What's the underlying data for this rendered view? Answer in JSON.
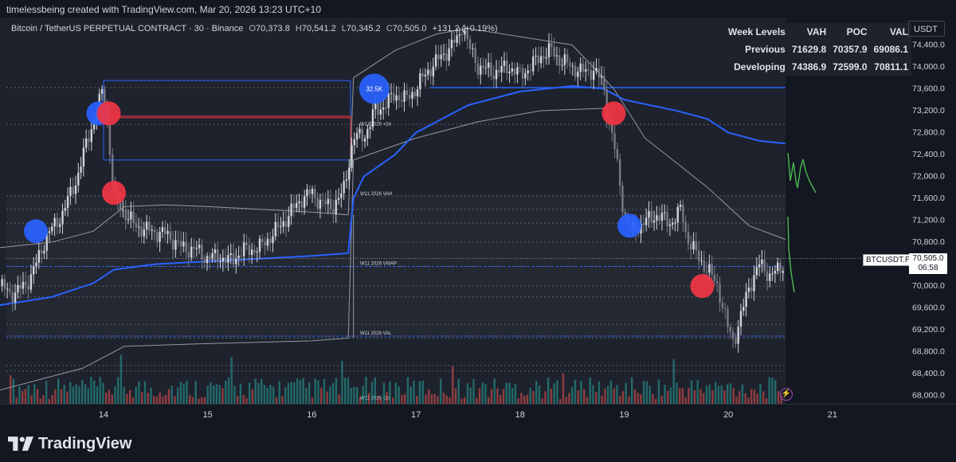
{
  "header": {
    "created_by": "timelessbeing created with TradingView.com, Mar 20, 2026 13:23 UTC+10"
  },
  "symbol_info": {
    "name": "Bitcoin / TetherUS PERPETUAL CONTRACT · 30 · Binance",
    "open_label": "O",
    "open": "70,373.8",
    "high_label": "H",
    "high": "70,541.2",
    "low_label": "L",
    "low": "70,345.2",
    "close_label": "C",
    "close": "70,505.0",
    "change": "+131.2 (+0.19%)"
  },
  "currency_button": "USDT",
  "week_levels_table": {
    "headers": [
      "Week Levels",
      "VAH",
      "POC",
      "VAL"
    ],
    "rows": [
      [
        "Previous",
        "71629.8",
        "70357.9",
        "69086.1"
      ],
      [
        "Developing",
        "74386.9",
        "72599.0",
        "70811.1"
      ]
    ]
  },
  "price_label": {
    "symbol": "BTCUSDT.P",
    "price": "70,505.0",
    "countdown": "06:58"
  },
  "branding": {
    "logo_text": "TradingView"
  },
  "colors": {
    "background": "#131722",
    "pane": "#1e222d",
    "blue_line": "#2962ff",
    "red_marker": "#f23645",
    "blue_marker": "#2962ff",
    "green_drawing": "#4caf50",
    "candle": "#d1d4dc",
    "volume_up": "#26a69a",
    "volume_down": "#ef5350"
  },
  "chart_data": {
    "type": "candlestick",
    "y_axis": {
      "ticks": [
        "74,400.0",
        "74,000.0",
        "73,600.0",
        "73,200.0",
        "72,800.0",
        "72,400.0",
        "72,000.0",
        "71,600.0",
        "71,200.0",
        "70,800.0",
        "70,000.0",
        "69,600.0",
        "69,200.0",
        "68,800.0",
        "68,400.0",
        "68,000.0"
      ],
      "tick_values": [
        74400,
        74000,
        73600,
        73200,
        72800,
        72400,
        72000,
        71600,
        71200,
        70800,
        70000,
        69600,
        69200,
        68800,
        68400,
        68000
      ],
      "range": [
        67850,
        74900
      ]
    },
    "x_axis": {
      "ticks": [
        "14",
        "15",
        "16",
        "17",
        "18",
        "19",
        "20",
        "21"
      ],
      "tick_days": [
        14,
        15,
        16,
        17,
        18,
        19,
        20,
        21
      ],
      "range": [
        13,
        21.4
      ]
    },
    "price_path": [
      [
        13.0,
        70000
      ],
      [
        13.15,
        69850
      ],
      [
        13.3,
        70150
      ],
      [
        13.45,
        70900
      ],
      [
        13.6,
        71300
      ],
      [
        13.75,
        72000
      ],
      [
        13.85,
        72700
      ],
      [
        13.95,
        73300
      ],
      [
        14.0,
        73600
      ],
      [
        14.05,
        72700
      ],
      [
        14.1,
        71600
      ],
      [
        14.2,
        71350
      ],
      [
        14.3,
        71100
      ],
      [
        14.45,
        71000
      ],
      [
        14.6,
        70950
      ],
      [
        14.75,
        70700
      ],
      [
        14.9,
        70650
      ],
      [
        15.0,
        70500
      ],
      [
        15.1,
        70550
      ],
      [
        15.2,
        70450
      ],
      [
        15.35,
        70650
      ],
      [
        15.5,
        70700
      ],
      [
        15.6,
        70900
      ],
      [
        15.7,
        71100
      ],
      [
        15.8,
        71350
      ],
      [
        15.9,
        71600
      ],
      [
        16.0,
        71700
      ],
      [
        16.1,
        71500
      ],
      [
        16.2,
        71450
      ],
      [
        16.3,
        71700
      ],
      [
        16.35,
        72200
      ],
      [
        16.4,
        72700
      ],
      [
        16.5,
        72750
      ],
      [
        16.55,
        72900
      ],
      [
        16.6,
        73200
      ],
      [
        16.7,
        73300
      ],
      [
        16.8,
        73500
      ],
      [
        16.9,
        73400
      ],
      [
        17.0,
        73600
      ],
      [
        17.1,
        73900
      ],
      [
        17.2,
        74100
      ],
      [
        17.3,
        74300
      ],
      [
        17.4,
        74500
      ],
      [
        17.45,
        74800
      ],
      [
        17.5,
        74400
      ],
      [
        17.6,
        74000
      ],
      [
        17.75,
        73900
      ],
      [
        17.9,
        74000
      ],
      [
        18.0,
        73850
      ],
      [
        18.1,
        74000
      ],
      [
        18.2,
        74200
      ],
      [
        18.3,
        74300
      ],
      [
        18.4,
        74100
      ],
      [
        18.5,
        74000
      ],
      [
        18.6,
        73900
      ],
      [
        18.7,
        73950
      ],
      [
        18.8,
        73700
      ],
      [
        18.85,
        73000
      ],
      [
        18.9,
        72600
      ],
      [
        18.95,
        72000
      ],
      [
        19.0,
        71300
      ],
      [
        19.05,
        71000
      ],
      [
        19.15,
        71100
      ],
      [
        19.3,
        71300
      ],
      [
        19.45,
        71150
      ],
      [
        19.55,
        71400
      ],
      [
        19.6,
        70900
      ],
      [
        19.7,
        70550
      ],
      [
        19.8,
        70300
      ],
      [
        19.9,
        70000
      ],
      [
        19.95,
        69600
      ],
      [
        20.0,
        69200
      ],
      [
        20.05,
        69000
      ],
      [
        20.1,
        69300
      ],
      [
        20.2,
        70000
      ],
      [
        20.3,
        70400
      ],
      [
        20.4,
        70200
      ],
      [
        20.5,
        70300
      ],
      [
        20.55,
        70505
      ]
    ],
    "series": [
      {
        "name": "W11 2026 VAH",
        "values": [
          71629.8
        ]
      },
      {
        "name": "W11 2026 VWAP",
        "values": [
          70357.9
        ]
      },
      {
        "name": "W11 2026 VAL",
        "values": [
          69086.1
        ]
      },
      {
        "name": "W11 2026 +2σ",
        "values": [
          72900
        ]
      },
      {
        "name": "W11 2026 -2σ",
        "values": [
          67900
        ]
      }
    ],
    "level_labels": {
      "plus2": "W11 2026 +2σ",
      "vah": "W11 2026 VAH",
      "vwap": "W11 2026 VWAP",
      "val": "W11 2026 VAL",
      "minus2": "W11 2026 -2σ"
    },
    "developing_vwap": [
      [
        13.0,
        69650
      ],
      [
        13.5,
        69800
      ],
      [
        13.9,
        70050
      ],
      [
        14.1,
        70300
      ],
      [
        14.5,
        70400
      ],
      [
        15.0,
        70450
      ],
      [
        15.5,
        70500
      ],
      [
        16.0,
        70550
      ],
      [
        16.35,
        70600
      ],
      [
        16.4,
        71600
      ],
      [
        16.5,
        72000
      ],
      [
        16.8,
        72400
      ],
      [
        17.0,
        72800
      ],
      [
        17.3,
        73100
      ],
      [
        17.5,
        73300
      ],
      [
        17.8,
        73450
      ],
      [
        18.0,
        73550
      ],
      [
        18.5,
        73650
      ],
      [
        18.8,
        73600
      ],
      [
        19.0,
        73400
      ],
      [
        19.5,
        73200
      ],
      [
        19.8,
        73050
      ],
      [
        20.0,
        72800
      ],
      [
        20.3,
        72650
      ],
      [
        20.55,
        72599
      ]
    ],
    "horizontal_lines": [
      73620,
      72950,
      71650,
      71400,
      71150,
      70800,
      70357.9,
      70000,
      69800,
      69300,
      69086.1,
      69050,
      68550,
      68450
    ],
    "markers": [
      {
        "color": "blue",
        "x": 13.95,
        "y": 73150,
        "label": ""
      },
      {
        "color": "red",
        "x": 14.05,
        "y": 73150,
        "label": ""
      },
      {
        "color": "red",
        "x": 14.1,
        "y": 71700,
        "label": ""
      },
      {
        "color": "blue",
        "x": 13.35,
        "y": 71000,
        "label": ""
      },
      {
        "color": "blue",
        "x": 16.6,
        "y": 73600,
        "label": "32.5K"
      },
      {
        "color": "red",
        "x": 18.9,
        "y": 73150,
        "label": ""
      },
      {
        "color": "blue",
        "x": 19.05,
        "y": 71100,
        "label": ""
      },
      {
        "color": "red",
        "x": 19.75,
        "y": 70000,
        "label": ""
      }
    ]
  }
}
